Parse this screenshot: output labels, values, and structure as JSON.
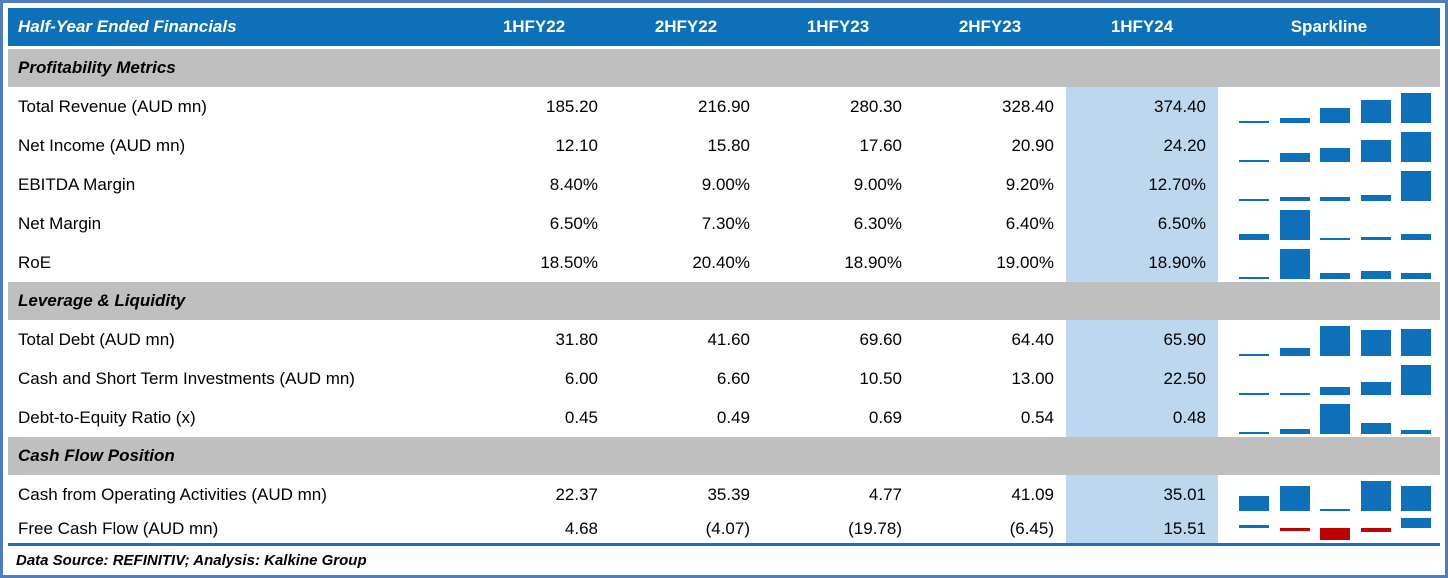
{
  "chart_data": {
    "type": "table",
    "title": "Half-Year Ended Financials",
    "categories": [
      "1HFY22",
      "2HFY22",
      "1HFY23",
      "2HFY23",
      "1HFY24"
    ],
    "sparkline_column": "Sparkline",
    "highlight_column": "1HFY24",
    "sparkline_type": "bar",
    "sections": [
      {
        "title": "Profitability Metrics",
        "rows": [
          {
            "label": "Total Revenue (AUD mn)",
            "display": [
              "185.20",
              "216.90",
              "280.30",
              "328.40",
              "374.40"
            ],
            "values": [
              185.2,
              216.9,
              280.3,
              328.4,
              374.4
            ]
          },
          {
            "label": "Net Income (AUD mn)",
            "display": [
              "12.10",
              "15.80",
              "17.60",
              "20.90",
              "24.20"
            ],
            "values": [
              12.1,
              15.8,
              17.6,
              20.9,
              24.2
            ]
          },
          {
            "label": "EBITDA Margin",
            "display": [
              "8.40%",
              "9.00%",
              "9.00%",
              "9.20%",
              "12.70%"
            ],
            "values": [
              8.4,
              9.0,
              9.0,
              9.2,
              12.7
            ]
          },
          {
            "label": "Net Margin",
            "display": [
              "6.50%",
              "7.30%",
              "6.30%",
              "6.40%",
              "6.50%"
            ],
            "values": [
              6.5,
              7.3,
              6.3,
              6.4,
              6.5
            ]
          },
          {
            "label": "RoE",
            "display": [
              "18.50%",
              "20.40%",
              "18.90%",
              "19.00%",
              "18.90%"
            ],
            "values": [
              18.5,
              20.4,
              18.9,
              19.0,
              18.9
            ]
          }
        ]
      },
      {
        "title": "Leverage & Liquidity",
        "rows": [
          {
            "label": "Total Debt (AUD mn)",
            "display": [
              "31.80",
              "41.60",
              "69.60",
              "64.40",
              "65.90"
            ],
            "values": [
              31.8,
              41.6,
              69.6,
              64.4,
              65.9
            ]
          },
          {
            "label": "Cash and Short Term Investments (AUD mn)",
            "display": [
              "6.00",
              "6.60",
              "10.50",
              "13.00",
              "22.50"
            ],
            "values": [
              6.0,
              6.6,
              10.5,
              13.0,
              22.5
            ]
          },
          {
            "label": "Debt-to-Equity Ratio (x)",
            "display": [
              "0.45",
              "0.49",
              "0.69",
              "0.54",
              "0.48"
            ],
            "values": [
              0.45,
              0.49,
              0.69,
              0.54,
              0.48
            ]
          }
        ]
      },
      {
        "title": "Cash Flow Position",
        "rows": [
          {
            "label": "Cash from Operating Activities (AUD mn)",
            "display": [
              "22.37",
              "35.39",
              "4.77",
              "41.09",
              "35.01"
            ],
            "values": [
              22.37,
              35.39,
              4.77,
              41.09,
              35.01
            ]
          },
          {
            "label": "Free Cash Flow (AUD mn)",
            "display": [
              "4.68",
              "(4.07)",
              "(19.78)",
              "(6.45)",
              "15.51"
            ],
            "values": [
              4.68,
              -4.07,
              -19.78,
              -6.45,
              15.51
            ],
            "compact": true
          }
        ]
      }
    ],
    "footer": "Data Source: REFINITIV; Analysis: Kalkine Group",
    "colors": {
      "header_bg": "#0d70b9",
      "header_text": "#ffffff",
      "section_bg": "#bfbfbf",
      "highlight_bg": "#bdd7ee",
      "spark_positive": "#0d70b9",
      "spark_negative": "#c00000",
      "outer_border": "#4f7dbd",
      "footer_line": "#1e6fbe"
    }
  }
}
